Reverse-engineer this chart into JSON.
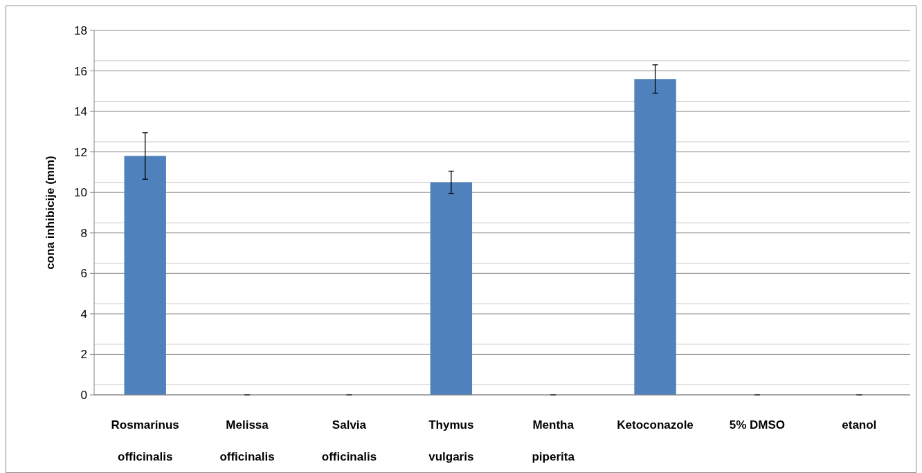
{
  "chart_data": {
    "type": "bar",
    "ylabel": "cona inhibicije (mm)",
    "categories": [
      "Rosmarinus\nofficinalis",
      "Melissa\nofficinalis",
      "Salvia\nofficinalis",
      "Thymus\nvulgaris",
      "Mentha\npiperita",
      "Ketoconazole",
      "5% DMSO",
      "etanol"
    ],
    "values": [
      11.8,
      0,
      0,
      10.5,
      0,
      15.6,
      0,
      0
    ],
    "errors": [
      1.15,
      0,
      0,
      0.55,
      0,
      0.7,
      0,
      0
    ],
    "color": "#4f81bd",
    "ylim": [
      0,
      18
    ],
    "yticks": [
      0,
      {
        "value": 0.5,
        "label": null
      },
      2,
      {
        "value": 2.5,
        "label": null
      },
      4,
      {
        "value": 4.5,
        "label": null
      },
      6,
      {
        "value": 6.5,
        "label": null
      },
      8,
      {
        "value": 8.5,
        "label": null
      },
      10,
      {
        "value": 10.5,
        "label": null
      },
      12,
      {
        "value": 12.5,
        "label": null
      },
      14,
      {
        "value": 14.5,
        "label": null
      },
      16,
      {
        "value": 16.5,
        "label": null
      },
      18
    ],
    "grid": "y"
  }
}
